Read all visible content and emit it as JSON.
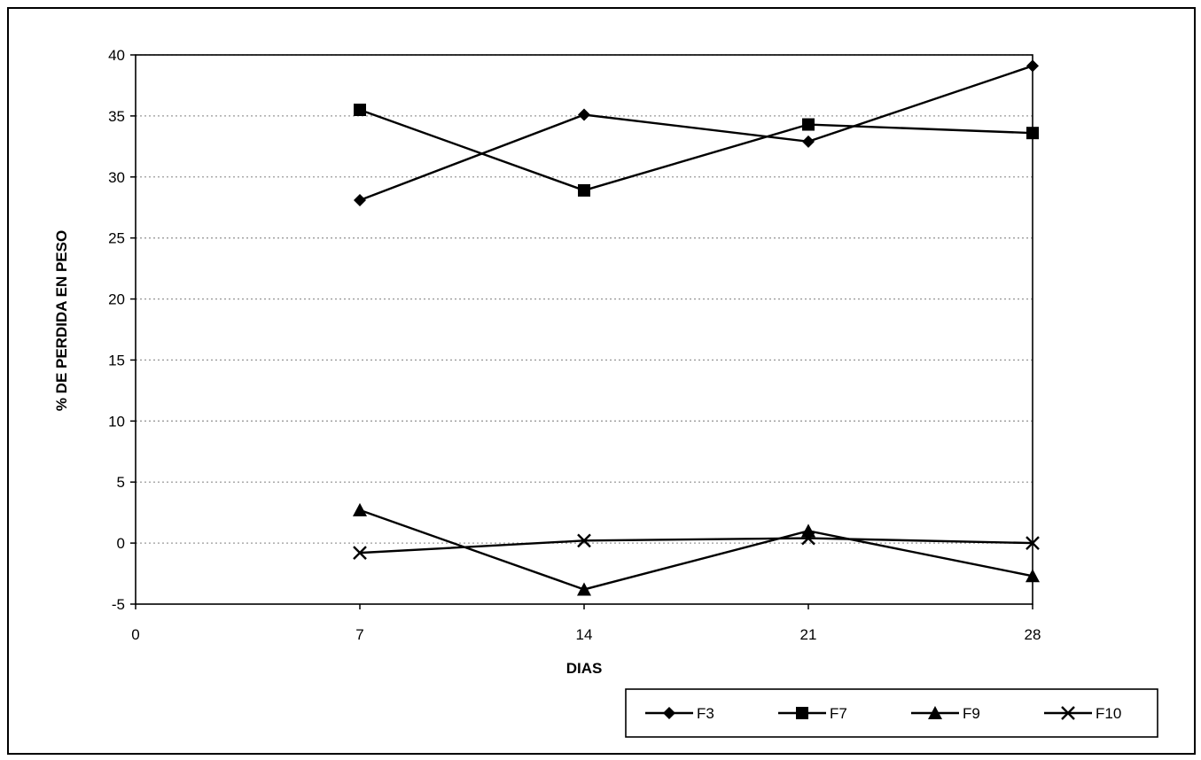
{
  "chart_data": {
    "type": "line",
    "title": "",
    "xlabel": "DIAS",
    "ylabel": "% DE PERDIDA EN PESO",
    "x_ticks": [
      "0",
      "7",
      "14",
      "21",
      "28"
    ],
    "y_ticks": [
      "40",
      "35",
      "30",
      "25",
      "20",
      "15",
      "10",
      "5",
      "0",
      "-5"
    ],
    "xlim": [
      0,
      28
    ],
    "ylim": [
      -5,
      40
    ],
    "grid": "horizontal-dotted",
    "legend_position": "bottom-right",
    "series": [
      {
        "name": "F3",
        "marker": "diamond",
        "x": [
          7,
          14,
          21,
          28
        ],
        "y": [
          28.1,
          35.1,
          32.9,
          39.1
        ]
      },
      {
        "name": "F7",
        "marker": "square",
        "x": [
          7,
          14,
          21,
          28
        ],
        "y": [
          35.5,
          28.9,
          34.3,
          33.6
        ]
      },
      {
        "name": "F9",
        "marker": "triangle",
        "x": [
          7,
          14,
          21,
          28
        ],
        "y": [
          2.7,
          -3.8,
          1.0,
          -2.7
        ]
      },
      {
        "name": "F10",
        "marker": "x",
        "x": [
          7,
          14,
          21,
          28
        ],
        "y": [
          -0.8,
          0.2,
          0.4,
          0.0
        ]
      }
    ],
    "colors": {
      "line": "#000000",
      "grid": "#9a9a9a"
    }
  }
}
